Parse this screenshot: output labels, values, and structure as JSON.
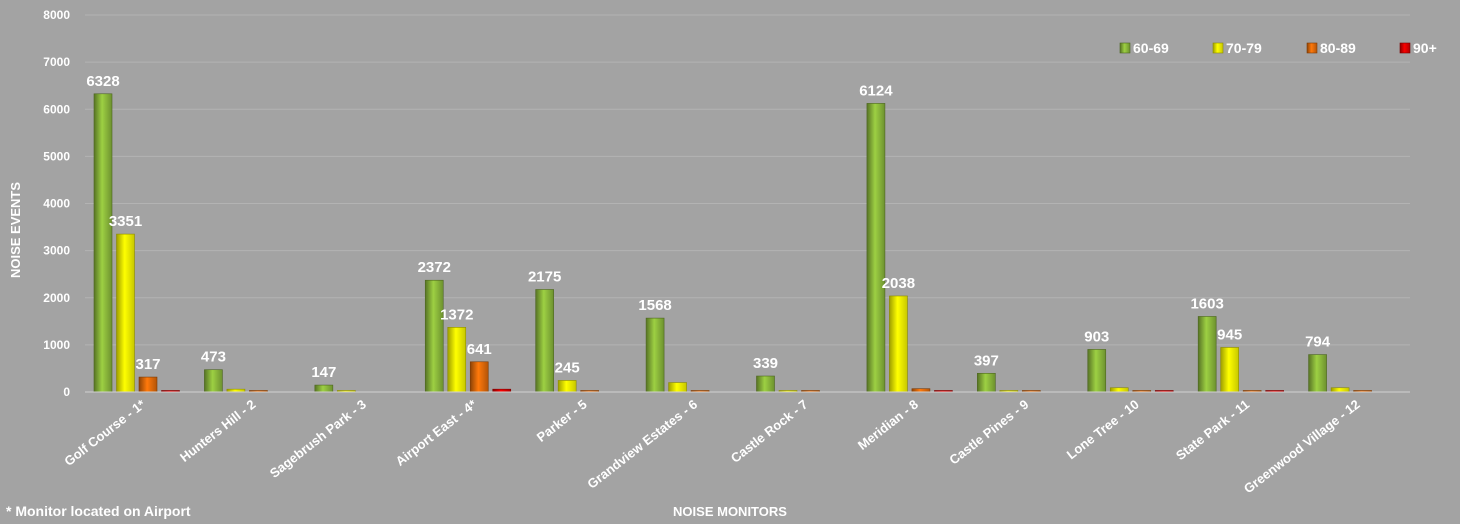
{
  "chart_data": {
    "type": "bar",
    "title": "",
    "xlabel": "NOISE MONITORS",
    "ylabel": "NOISE EVENTS",
    "ylim": [
      0,
      8000
    ],
    "yticks": [
      "0",
      "1000",
      "2000",
      "3000",
      "4000",
      "5000",
      "6000",
      "7000",
      "8000"
    ],
    "grid": true,
    "legend_position": "top-right",
    "footnote": "* Monitor located on Airport",
    "categories": [
      "Golf Course - 1*",
      "Hunters Hill - 2",
      "Sagebrush Park - 3",
      "Airport East - 4*",
      "Parker - 5",
      "Grandview Estates - 6",
      "Castle Rock - 7",
      "Meridian - 8",
      "Castle Pines - 9",
      "Lone Tree - 10",
      "State Park - 11",
      "Greenwood Village - 12"
    ],
    "series": [
      {
        "name": "60-69",
        "color": "#8cba3c",
        "values": [
          6328,
          473,
          147,
          2372,
          2175,
          1568,
          339,
          6124,
          397,
          903,
          1603,
          794
        ],
        "labels": [
          "6328",
          "473",
          "147",
          "2372",
          "2175",
          "1568",
          "339",
          "6124",
          "397",
          "903",
          "1603",
          "794"
        ]
      },
      {
        "name": "70-79",
        "color": "#ffff00",
        "values": [
          3351,
          60,
          10,
          1372,
          245,
          200,
          6,
          2038,
          30,
          90,
          945,
          90
        ],
        "labels": [
          "3351",
          "",
          "",
          "1372",
          "245",
          "",
          "",
          "2038",
          "",
          "",
          "945",
          ""
        ]
      },
      {
        "name": "80-89",
        "color": "#e46c0a",
        "values": [
          317,
          4,
          0,
          641,
          2,
          2,
          25,
          70,
          3,
          4,
          10,
          2
        ],
        "labels": [
          "317",
          "",
          "",
          "641",
          "",
          "",
          "",
          "",
          "",
          "",
          "",
          ""
        ]
      },
      {
        "name": "90+",
        "color": "#e00000",
        "values": [
          15,
          0,
          0,
          60,
          0,
          0,
          0,
          15,
          0,
          10,
          20,
          0
        ],
        "labels": [
          "",
          "",
          "",
          "",
          "",
          "",
          "",
          "",
          "",
          "",
          "",
          ""
        ]
      }
    ]
  }
}
